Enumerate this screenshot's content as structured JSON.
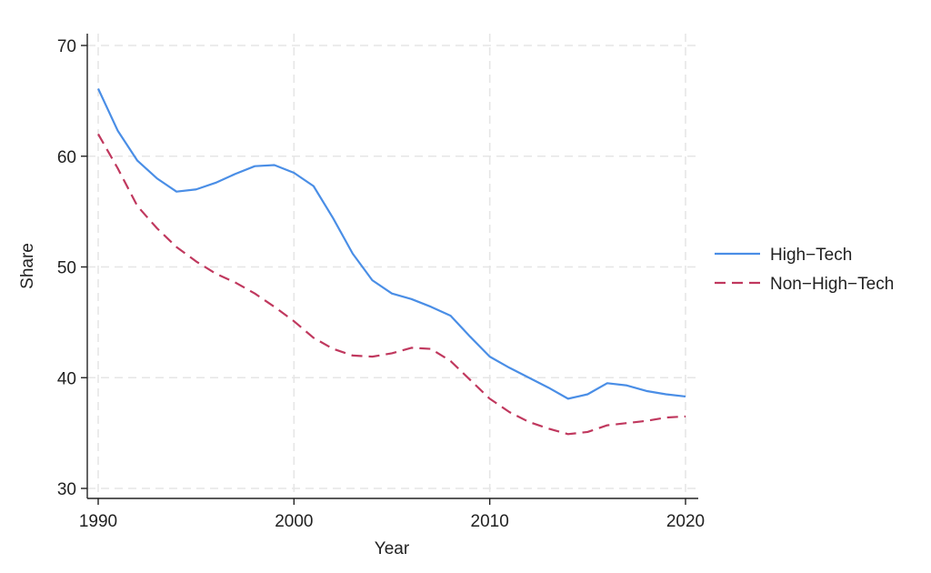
{
  "chart_data": {
    "type": "line",
    "title": "",
    "xlabel": "Year",
    "ylabel": "Share",
    "xlim": [
      1990,
      2020
    ],
    "ylim": [
      30,
      70
    ],
    "xticks": [
      1990,
      2000,
      2010,
      2020
    ],
    "yticks": [
      30,
      40,
      50,
      60,
      70
    ],
    "grid": true,
    "legend_position": "right",
    "x": [
      1990,
      1991,
      1992,
      1993,
      1994,
      1995,
      1996,
      1997,
      1998,
      1999,
      2000,
      2001,
      2002,
      2003,
      2004,
      2005,
      2006,
      2007,
      2008,
      2009,
      2010,
      2011,
      2012,
      2013,
      2014,
      2015,
      2016,
      2017,
      2018,
      2019,
      2020
    ],
    "series": [
      {
        "name": "High−Tech",
        "color": "#4a8ee6",
        "style": "solid",
        "values": [
          66.1,
          62.3,
          59.6,
          58.0,
          56.8,
          57.0,
          57.6,
          58.4,
          59.1,
          59.2,
          58.5,
          57.3,
          54.4,
          51.2,
          48.8,
          47.6,
          47.1,
          46.4,
          45.6,
          43.7,
          41.9,
          40.9,
          40.0,
          39.1,
          38.1,
          38.5,
          39.5,
          39.3,
          38.8,
          38.5,
          38.3
        ]
      },
      {
        "name": "Non−High−Tech",
        "color": "#c0385e",
        "style": "dashed",
        "values": [
          62.0,
          58.9,
          55.5,
          53.5,
          51.8,
          50.5,
          49.4,
          48.6,
          47.6,
          46.4,
          45.1,
          43.6,
          42.6,
          42.0,
          41.9,
          42.2,
          42.7,
          42.6,
          41.5,
          39.8,
          38.1,
          36.9,
          36.0,
          35.4,
          34.9,
          35.1,
          35.7,
          35.9,
          36.1,
          36.4,
          36.5
        ]
      }
    ]
  }
}
